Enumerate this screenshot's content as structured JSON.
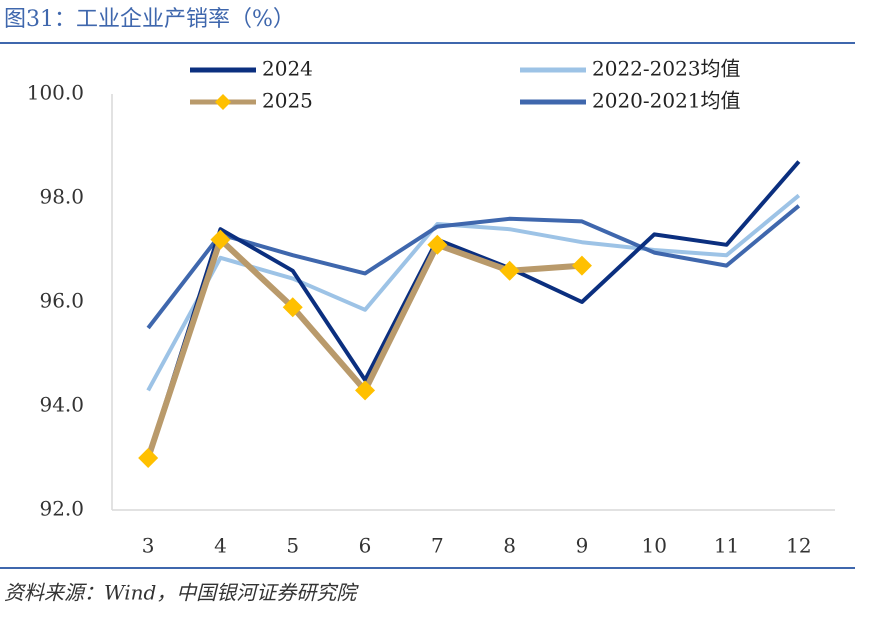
{
  "chart_data": {
    "type": "line",
    "title": "图31：工业企业产销率（%）",
    "source": "资料来源：Wind，中国银河证券研究院",
    "categories": [
      "3",
      "4",
      "5",
      "6",
      "7",
      "8",
      "9",
      "10",
      "11",
      "12"
    ],
    "ylim": [
      92,
      100
    ],
    "yticks": [
      {
        "value": 92,
        "label": "92.0"
      },
      {
        "value": 94,
        "label": "94.0"
      },
      {
        "value": 96,
        "label": "96.0"
      },
      {
        "value": 98,
        "label": "98.0"
      },
      {
        "value": 100,
        "label": "100.0"
      }
    ],
    "grid": false,
    "legend": "top",
    "series": [
      {
        "name": "2024",
        "color": "#0b2f7f",
        "values": [
          93.0,
          97.4,
          96.6,
          94.5,
          97.2,
          96.65,
          96.0,
          97.3,
          97.1,
          98.7
        ]
      },
      {
        "name": "2022-2023均值",
        "color": "#9dc3e6",
        "values": [
          94.3,
          96.85,
          96.45,
          95.85,
          97.5,
          97.4,
          97.15,
          97.0,
          96.9,
          98.05
        ]
      },
      {
        "name": "2025",
        "color": "#b99a6b",
        "marker_color": "#ffc000",
        "values": [
          93.0,
          97.2,
          95.9,
          94.3,
          97.1,
          96.6,
          96.7,
          null,
          null,
          null
        ]
      },
      {
        "name": "2020-2021均值",
        "color": "#3f67ad",
        "values": [
          95.5,
          97.3,
          96.9,
          96.55,
          97.45,
          97.6,
          97.55,
          96.95,
          96.7,
          97.85
        ]
      }
    ]
  }
}
